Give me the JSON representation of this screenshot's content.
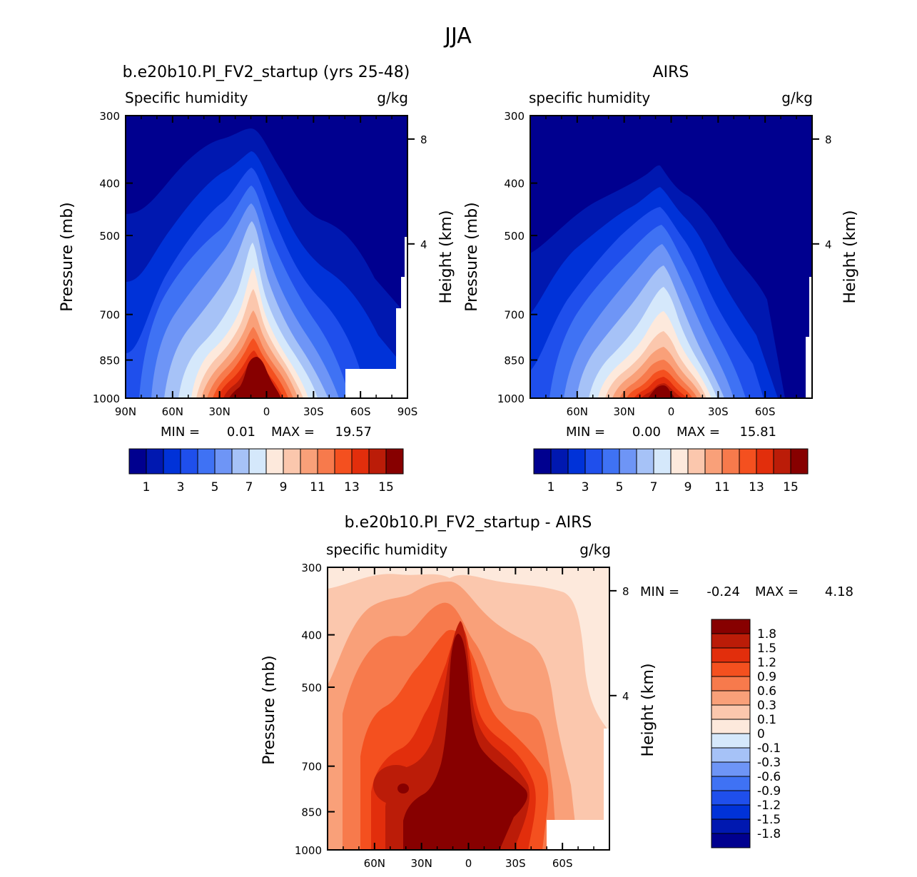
{
  "figure_title": "JJA",
  "colors": {
    "abs_scale": [
      "#00008f",
      "#0018b0",
      "#0032d8",
      "#1f4fec",
      "#3f72f4",
      "#6e95f6",
      "#a6c2f7",
      "#d5e8fb",
      "#fde9dc",
      "#fbc7ad",
      "#f9a079",
      "#f77a4c",
      "#f4501f",
      "#e22e0c",
      "#bb1c08",
      "#870000"
    ],
    "diff_scale": [
      "#00008f",
      "#0018b0",
      "#0032d8",
      "#1f4fec",
      "#3f72f4",
      "#6e95f6",
      "#a6c2f7",
      "#d5e8fb",
      "#fde9dc",
      "#fbc7ad",
      "#f9a079",
      "#f77a4c",
      "#f4501f",
      "#e22e0c",
      "#bb1c08",
      "#870000"
    ]
  },
  "chart_data": [
    {
      "type": "heatmap",
      "title": "b.e20b10.PI_FV2_startup (yrs 25-48)",
      "subtitle_left": "Specific humidity",
      "subtitle_right": "g/kg",
      "ylabel": "Pressure (mb)",
      "ylabel_right": "Height (km)",
      "x_ticks": [
        "90N",
        "60N",
        "30N",
        "0",
        "30S",
        "60S",
        "90S"
      ],
      "y_ticks": [
        "300",
        "400",
        "500",
        "700",
        "850",
        "1000"
      ],
      "y_right_ticks": [
        "8",
        "4"
      ],
      "min_label": "MIN =",
      "min_value": "0.01",
      "max_label": "MAX =",
      "max_value": "19.57",
      "colorbar_labels": [
        "1",
        "3",
        "5",
        "7",
        "9",
        "11",
        "13",
        "15"
      ]
    },
    {
      "type": "heatmap",
      "title": "AIRS",
      "subtitle_left": "specific humidity",
      "subtitle_right": "g/kg",
      "ylabel": "Pressure (mb)",
      "ylabel_right": "Height (km)",
      "x_ticks": [
        "60N",
        "30N",
        "0",
        "30S",
        "60S"
      ],
      "y_ticks": [
        "300",
        "400",
        "500",
        "700",
        "850",
        "1000"
      ],
      "y_right_ticks": [
        "8",
        "4"
      ],
      "min_label": "MIN =",
      "min_value": "0.00",
      "max_label": "MAX =",
      "max_value": "15.81",
      "colorbar_labels": [
        "1",
        "3",
        "5",
        "7",
        "9",
        "11",
        "13",
        "15"
      ]
    },
    {
      "type": "heatmap",
      "title": "b.e20b10.PI_FV2_startup - AIRS",
      "subtitle_left": "specific humidity",
      "subtitle_right": "g/kg",
      "ylabel": "Pressure (mb)",
      "ylabel_right": "Height (km)",
      "x_ticks": [
        "60N",
        "30N",
        "0",
        "30S",
        "60S"
      ],
      "y_ticks": [
        "300",
        "400",
        "500",
        "700",
        "850",
        "1000"
      ],
      "y_right_ticks": [
        "8",
        "4"
      ],
      "min_label": "MIN =",
      "min_value": "-0.24",
      "max_label": "MAX =",
      "max_value": "4.18",
      "colorbar_labels": [
        "1.8",
        "1.5",
        "1.2",
        "0.9",
        "0.6",
        "0.3",
        "0.1",
        "0",
        "-0.1",
        "-0.3",
        "-0.6",
        "-0.9",
        "-1.2",
        "-1.5",
        "-1.8"
      ]
    }
  ]
}
